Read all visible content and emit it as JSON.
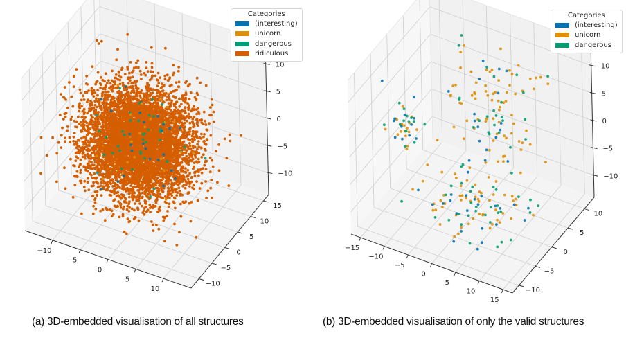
{
  "figure": {
    "captions": [
      "(a) 3D-embedded visualisation of all structures",
      "(b) 3D-embedded visualisation of only the valid structures"
    ]
  },
  "colors": {
    "interesting": "#0173b2",
    "unicorn": "#de8f05",
    "dangerous": "#029e73",
    "ridiculous": "#d55e00",
    "pane": "#f2f2f2",
    "grid": "#cfcfcf"
  },
  "chart_data": [
    {
      "type": "scatter",
      "dimensions": 3,
      "title": "",
      "caption": "(a) 3D-embedded visualisation of all structures",
      "legend": {
        "title": "Categories",
        "placement": "top-right",
        "entries": [
          "(interesting)",
          "unicorn",
          "dangerous",
          "ridiculous"
        ]
      },
      "axes": {
        "x": {
          "label": "",
          "ticks": [
            -10,
            -5,
            0,
            5,
            10
          ],
          "range": [
            -15,
            15
          ]
        },
        "y": {
          "label": "",
          "ticks": [
            -10,
            -5,
            0,
            5,
            10,
            15
          ],
          "range": [
            -13,
            17
          ]
        },
        "z": {
          "label": "",
          "ticks": [
            -10,
            -5,
            0,
            5,
            10
          ],
          "range": [
            -14,
            14
          ]
        }
      },
      "grid": true,
      "series": [
        {
          "name": "ridiculous",
          "color": "#d55e00",
          "distribution": "gaussian-blob",
          "center": [
            0,
            0,
            0
          ],
          "spread": [
            4.5,
            4.5,
            4.0
          ],
          "approx_count": 6000
        },
        {
          "name": "dangerous",
          "color": "#029e73",
          "distribution": "scattered",
          "center": [
            0,
            0,
            0
          ],
          "spread": [
            4.0,
            4.0,
            3.5
          ],
          "approx_count": 40
        },
        {
          "name": "(interesting)",
          "color": "#0173b2",
          "distribution": "scattered",
          "center": [
            0,
            0,
            0
          ],
          "spread": [
            4.0,
            4.0,
            3.5
          ],
          "approx_count": 25
        },
        {
          "name": "unicorn",
          "color": "#de8f05",
          "distribution": "scattered",
          "center": [
            0,
            0,
            0
          ],
          "spread": [
            4.0,
            4.0,
            3.5
          ],
          "approx_count": 20
        }
      ]
    },
    {
      "type": "scatter",
      "dimensions": 3,
      "title": "",
      "caption": "(b) 3D-embedded visualisation of only the valid structures",
      "legend": {
        "title": "Categories",
        "placement": "top-right",
        "entries": [
          "(interesting)",
          "unicorn",
          "dangerous"
        ]
      },
      "axes": {
        "x": {
          "label": "",
          "ticks": [
            -15,
            -10,
            -5,
            0,
            5,
            10,
            15
          ],
          "range": [
            -17,
            17
          ]
        },
        "y": {
          "label": "",
          "ticks": [
            -10,
            -5,
            0,
            5,
            10
          ],
          "range": [
            -12,
            13
          ]
        },
        "z": {
          "label": "",
          "ticks": [
            -10,
            -5,
            0,
            5,
            10
          ],
          "range": [
            -14,
            14
          ]
        }
      },
      "grid": true,
      "series": [
        {
          "name": "unicorn",
          "color": "#de8f05",
          "approx_count": 150,
          "clusters": [
            {
              "center": [
                -12,
                -2,
                0
              ],
              "spread": [
                1.5,
                1.5,
                1.5
              ],
              "share": 0.12
            },
            {
              "center": [
                2,
                4,
                4
              ],
              "spread": [
                5,
                4,
                5
              ],
              "share": 0.5
            },
            {
              "center": [
                4,
                -4,
                -7
              ],
              "spread": [
                5,
                4,
                2.5
              ],
              "share": 0.38
            }
          ]
        },
        {
          "name": "dangerous",
          "color": "#029e73",
          "approx_count": 70,
          "clusters": [
            {
              "center": [
                -12,
                -2,
                0
              ],
              "spread": [
                1.5,
                1.5,
                1.5
              ],
              "share": 0.2
            },
            {
              "center": [
                2,
                4,
                4
              ],
              "spread": [
                5,
                4,
                5
              ],
              "share": 0.35
            },
            {
              "center": [
                4,
                -4,
                -7
              ],
              "spread": [
                5,
                4,
                2.5
              ],
              "share": 0.45
            }
          ]
        },
        {
          "name": "(interesting)",
          "color": "#0173b2",
          "approx_count": 55,
          "clusters": [
            {
              "center": [
                -12,
                -2,
                0
              ],
              "spread": [
                1.5,
                1.5,
                1.5
              ],
              "share": 0.2
            },
            {
              "center": [
                2,
                4,
                4
              ],
              "spread": [
                5,
                4,
                5
              ],
              "share": 0.35
            },
            {
              "center": [
                4,
                -4,
                -7
              ],
              "spread": [
                5,
                4,
                2.5
              ],
              "share": 0.45
            }
          ]
        }
      ]
    }
  ]
}
